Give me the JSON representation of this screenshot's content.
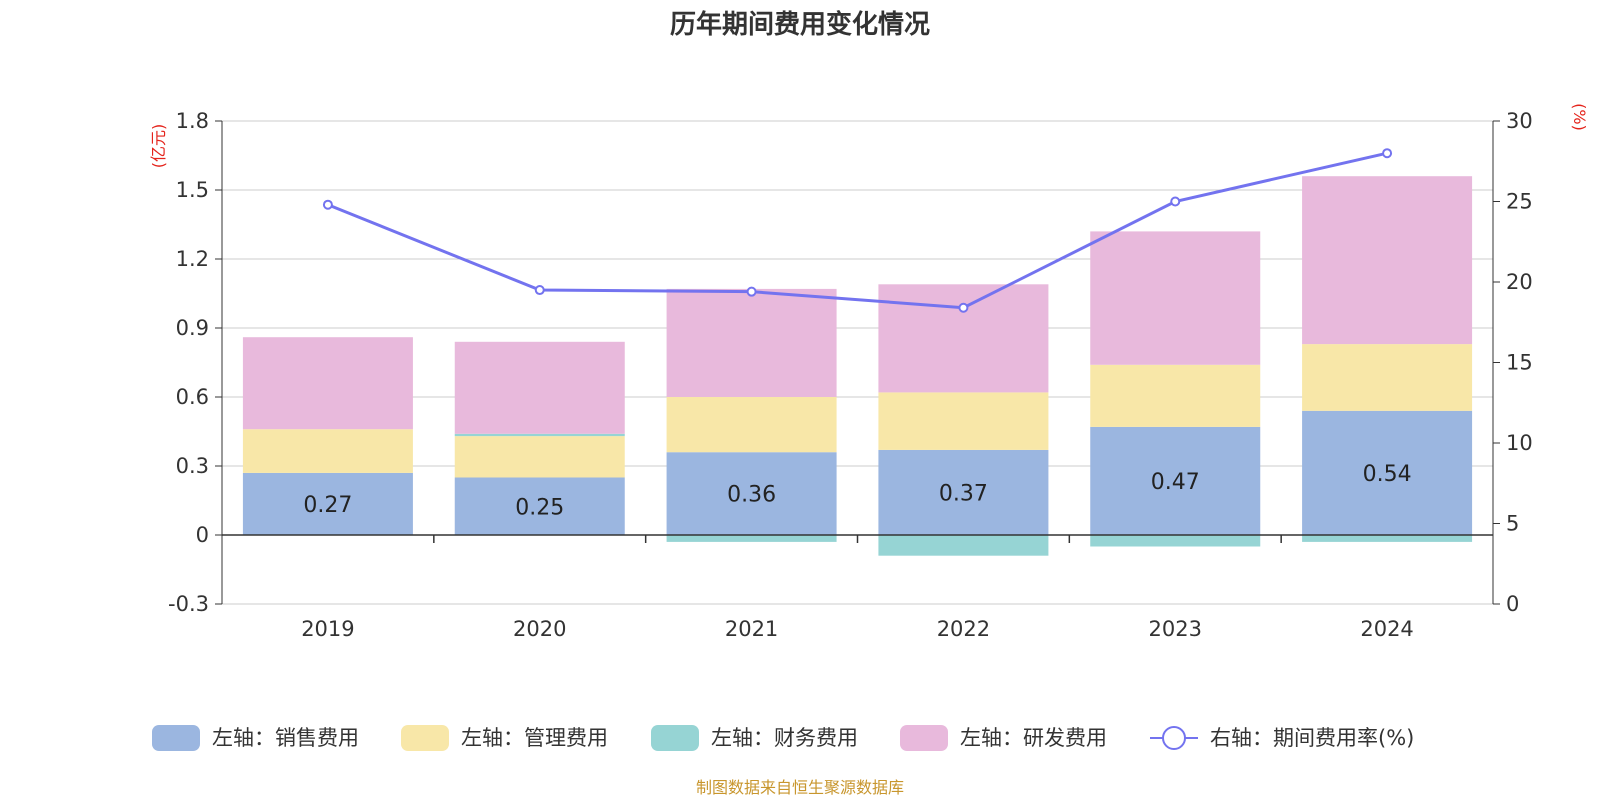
{
  "title": "历年期间费用变化情况",
  "source": "制图数据来自恒生聚源数据库",
  "chart_data": {
    "type": "bar",
    "stacked": true,
    "title": "历年期间费用变化情况",
    "categories": [
      "2019",
      "2020",
      "2021",
      "2022",
      "2023",
      "2024"
    ],
    "left_axis": {
      "unit": "(亿元)",
      "ylim": [
        -0.3,
        1.8
      ],
      "ticks": [
        "1.8",
        "1.5",
        "1.2",
        "0.9",
        "0.6",
        "0.3",
        "0",
        "-0.3"
      ],
      "tick_values": [
        1.8,
        1.5,
        1.2,
        0.9,
        0.6,
        0.3,
        0,
        -0.3
      ]
    },
    "right_axis": {
      "unit": "(%)",
      "ylim": [
        0,
        30
      ],
      "ticks": [
        "30",
        "25",
        "20",
        "15",
        "10",
        "5",
        "0"
      ],
      "tick_values": [
        30,
        25,
        20,
        15,
        10,
        5,
        0
      ]
    },
    "series": [
      {
        "name": "左轴：销售费用",
        "type": "bar",
        "axis": "left",
        "color": "#9bb6e0",
        "values": [
          0.27,
          0.25,
          0.36,
          0.37,
          0.47,
          0.54
        ],
        "labels": [
          "0.27",
          "0.25",
          "0.36",
          "0.37",
          "0.47",
          "0.54"
        ]
      },
      {
        "name": "左轴：管理费用",
        "type": "bar",
        "axis": "left",
        "color": "#f8e7a8",
        "values": [
          0.19,
          0.18,
          0.24,
          0.25,
          0.27,
          0.29
        ]
      },
      {
        "name": "左轴：财务费用",
        "type": "bar",
        "axis": "left",
        "color": "#96d4d4",
        "values": [
          0.0,
          0.01,
          -0.03,
          -0.09,
          -0.05,
          -0.03
        ]
      },
      {
        "name": "左轴：研发费用",
        "type": "bar",
        "axis": "left",
        "color": "#e8b9dc",
        "values": [
          0.4,
          0.4,
          0.47,
          0.47,
          0.58,
          0.73
        ]
      },
      {
        "name": "右轴：期间费用率(%)",
        "type": "line",
        "axis": "right",
        "color": "#7373ef",
        "values": [
          24.8,
          19.5,
          19.4,
          18.4,
          25.0,
          28.0
        ]
      }
    ],
    "grid": true,
    "legend_position": "bottom"
  }
}
